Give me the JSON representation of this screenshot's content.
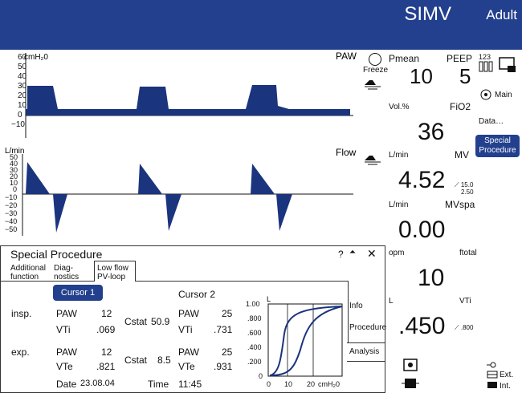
{
  "header": {
    "mode": "SIMV",
    "patient_type": "Adult"
  },
  "paw_chart": {
    "unit_label": "cmH₂0",
    "name": "PAW",
    "ticks": [
      "60",
      "50",
      "40",
      "30",
      "20",
      "10",
      "0",
      "−10"
    ]
  },
  "flow_chart": {
    "unit_label": "L/min",
    "name": "Flow",
    "ticks": [
      "50",
      "40",
      "30",
      "20",
      "10",
      "0",
      "−10",
      "−20",
      "−30",
      "−40",
      "−50"
    ]
  },
  "freeze_label": "Freeze",
  "params": {
    "pmean": {
      "label": "Pmean",
      "value": "10"
    },
    "peep": {
      "label": "PEEP",
      "value": "5"
    },
    "fio2": {
      "unit": "Vol.%",
      "label": "FiO2",
      "value": "36"
    },
    "mv": {
      "unit": "L/min",
      "label": "MV",
      "value": "4.52",
      "alarm_high": "15.0",
      "alarm_low": "2.50"
    },
    "mvspa": {
      "unit": "L/min",
      "label": "MVspa",
      "value": "0.00"
    },
    "ftotal": {
      "unit": "opm",
      "label": "ftotal",
      "value": "10"
    },
    "vti": {
      "unit": "L",
      "label": "VTi",
      "value": ".450",
      "alarm": ".800"
    }
  },
  "sidebar": {
    "numbers_label": "123",
    "main_label": "Main",
    "data_label": "Data…",
    "special_label_1": "Special",
    "special_label_2": "Procedure",
    "ext_label": "Ext.",
    "int_label": "Int."
  },
  "panel": {
    "title": "Special Procedure",
    "help": "?",
    "tabs": [
      {
        "line1": "Additional",
        "line2": "function"
      },
      {
        "line1": "Diag-",
        "line2": "nostics"
      },
      {
        "line1": "Low flow",
        "line2": "PV-loop"
      }
    ],
    "side_tabs": [
      "Info",
      "Procedure",
      "Analysis"
    ],
    "cursor1": "Cursor 1",
    "cursor2": "Cursor 2",
    "insp_label": "insp.",
    "exp_label": "exp.",
    "insp": {
      "paw1": "12",
      "vti1": ".069",
      "cstat": "50.9",
      "paw2": "25",
      "vti2": ".731"
    },
    "exp": {
      "paw1": "12",
      "vte1": ".821",
      "cstat": "8.5",
      "paw2": "25",
      "vte2": ".931"
    },
    "paw_label": "PAW",
    "vti_label": "VTi",
    "vte_label": "VTe",
    "cstat_label": "Cstat",
    "date_label": "Date",
    "date_value": "23.08.04",
    "time_label": "Time",
    "time_value": "11:45",
    "loop": {
      "y_label": "L",
      "y_ticks": [
        "1.00",
        ".800",
        ".600",
        ".400",
        ".200",
        "0"
      ],
      "x_ticks": [
        "0",
        "10",
        "20"
      ],
      "x_unit": "cmH₂0"
    }
  }
}
